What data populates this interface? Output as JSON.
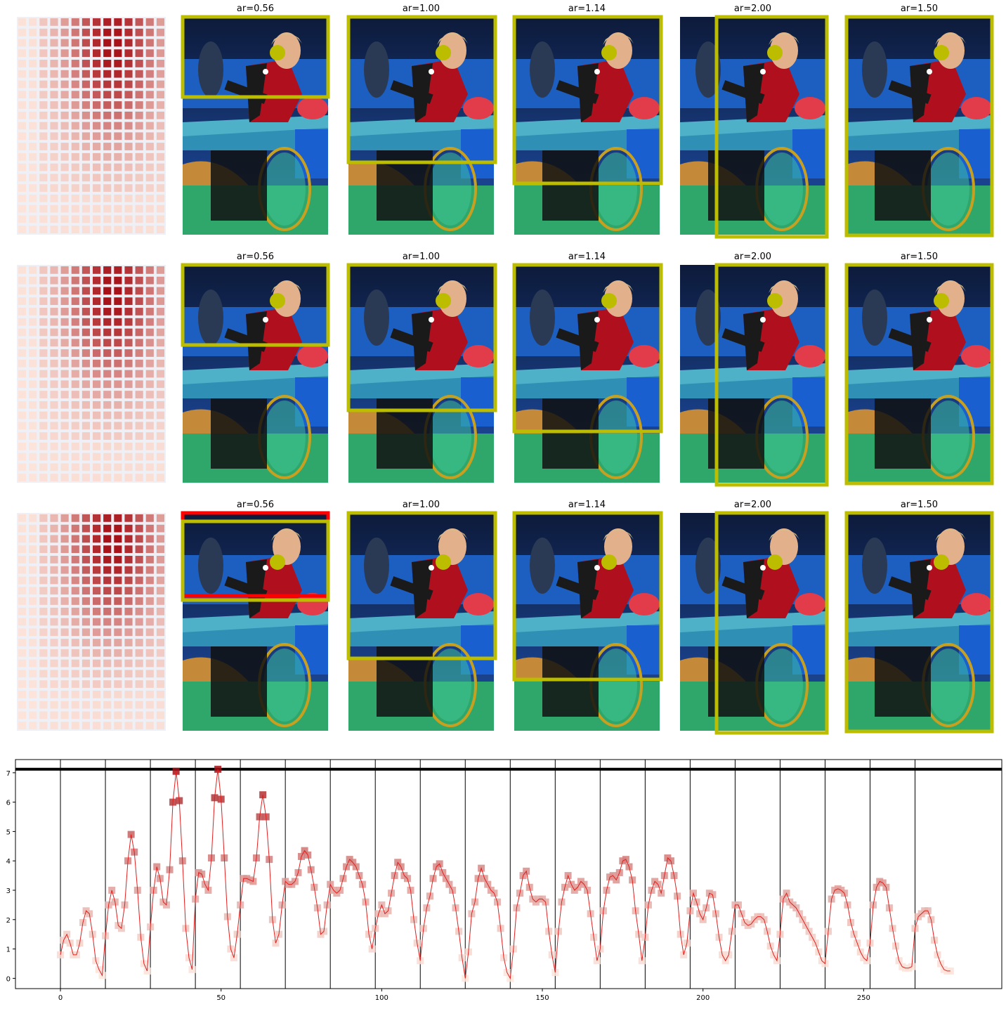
{
  "rows": [
    {
      "panels": [
        {
          "title": "ar=0.56",
          "box": "top",
          "dot": "upper"
        },
        {
          "title": "ar=1.00",
          "box": "tall",
          "dot": "upper"
        },
        {
          "title": "ar=1.14",
          "box": "taller",
          "dot": "upper"
        },
        {
          "title": "ar=2.00",
          "box": "narrow",
          "dot": "upper"
        },
        {
          "title": "ar=1.50",
          "box": "full",
          "dot": "upper"
        }
      ]
    },
    {
      "panels": [
        {
          "title": "ar=0.56",
          "box": "top",
          "dot": "upper"
        },
        {
          "title": "ar=1.00",
          "box": "tall",
          "dot": "upper"
        },
        {
          "title": "ar=1.14",
          "box": "taller",
          "dot": "upper"
        },
        {
          "title": "ar=2.00",
          "box": "narrow",
          "dot": "upper"
        },
        {
          "title": "ar=1.50",
          "box": "full",
          "dot": "upper"
        }
      ]
    },
    {
      "panels": [
        {
          "title": "ar=0.56",
          "box": "top",
          "dot": "lower",
          "red_box": true
        },
        {
          "title": "ar=1.00",
          "box": "tall",
          "dot": "lower"
        },
        {
          "title": "ar=1.14",
          "box": "taller",
          "dot": "lower"
        },
        {
          "title": "ar=2.00",
          "box": "narrow",
          "dot": "lower"
        },
        {
          "title": "ar=1.50",
          "box": "full",
          "dot": "lower"
        }
      ]
    }
  ],
  "colors": {
    "box": "#bdbd00",
    "red_box": "#ff0000",
    "line": "#e0201f",
    "threshold": "#000000",
    "heat_low": "#fde6dc",
    "heat_high": "#a50f15"
  },
  "chart_data": {
    "type": "line",
    "title": "",
    "xlabel": "",
    "ylabel": "",
    "xlim": [
      -14,
      293
    ],
    "ylim": [
      -0.35,
      7.45
    ],
    "xticks": [
      0,
      50,
      100,
      150,
      200,
      250
    ],
    "yticks": [
      0,
      1,
      2,
      3,
      4,
      5,
      6,
      7
    ],
    "threshold": 7.12,
    "segment_boundaries": [
      0,
      14,
      28,
      42,
      56,
      70,
      84,
      98,
      112,
      126,
      140,
      154,
      168,
      182,
      196,
      210,
      224,
      238,
      252,
      266
    ],
    "series": [
      {
        "values": [
          0.8,
          1.3,
          1.5,
          1.2,
          0.8,
          0.8,
          1.2,
          1.9,
          2.3,
          2.2,
          1.5,
          0.6,
          0.3,
          0.1,
          1.45,
          2.5,
          3.0,
          2.6,
          1.8,
          1.7,
          2.5,
          4.0,
          4.9,
          4.3,
          3.0,
          1.4,
          0.5,
          0.25,
          1.75,
          3.0,
          3.8,
          3.4,
          2.6,
          2.5,
          3.7,
          6.0,
          7.05,
          6.05,
          4.0,
          1.7,
          0.7,
          0.3,
          2.7,
          3.6,
          3.55,
          3.2,
          3.0,
          4.1,
          6.15,
          7.12,
          6.1,
          4.1,
          2.1,
          1.0,
          0.7,
          1.5,
          2.5,
          3.4,
          3.4,
          3.35,
          3.3,
          4.1,
          5.5,
          6.25,
          5.5,
          4.05,
          2.0,
          1.2,
          1.5,
          2.5,
          3.3,
          3.2,
          3.2,
          3.3,
          3.6,
          4.15,
          4.35,
          4.2,
          3.7,
          3.1,
          2.4,
          1.5,
          1.6,
          2.5,
          3.2,
          3.0,
          2.9,
          3.0,
          3.4,
          3.8,
          4.05,
          3.95,
          3.8,
          3.5,
          3.2,
          2.6,
          1.5,
          1.0,
          1.7,
          2.2,
          2.5,
          2.2,
          2.3,
          2.9,
          3.5,
          3.95,
          3.8,
          3.5,
          3.4,
          3.0,
          2.0,
          1.2,
          0.6,
          1.7,
          2.4,
          2.8,
          3.4,
          3.8,
          3.9,
          3.6,
          3.4,
          3.2,
          3.0,
          2.4,
          1.6,
          0.7,
          0.0,
          0.9,
          2.2,
          2.6,
          3.4,
          3.75,
          3.4,
          3.2,
          3.0,
          2.9,
          2.6,
          1.7,
          0.7,
          0.2,
          0.0,
          1.0,
          2.4,
          2.9,
          3.5,
          3.65,
          3.1,
          2.7,
          2.6,
          2.7,
          2.7,
          2.6,
          1.6,
          0.8,
          0.2,
          1.6,
          2.6,
          3.1,
          3.5,
          3.2,
          3.0,
          3.1,
          3.3,
          3.2,
          3.0,
          2.2,
          1.4,
          0.6,
          1.0,
          2.3,
          3.0,
          3.45,
          3.5,
          3.35,
          3.6,
          4.0,
          4.05,
          3.8,
          3.35,
          2.3,
          1.5,
          0.6,
          1.4,
          2.5,
          3.0,
          3.3,
          3.2,
          2.9,
          3.5,
          4.1,
          4.0,
          3.5,
          2.8,
          1.5,
          0.8,
          1.2,
          2.3,
          2.9,
          2.6,
          2.2,
          2.0,
          2.4,
          2.9,
          2.85,
          2.2,
          1.4,
          0.8,
          0.6,
          0.8,
          1.6,
          2.5,
          2.5,
          2.2,
          1.9,
          1.8,
          1.85,
          2.0,
          2.1,
          2.1,
          2.0,
          1.6,
          1.1,
          0.8,
          0.6,
          1.5,
          2.7,
          2.9,
          2.6,
          2.5,
          2.4,
          2.2,
          2.0,
          1.8,
          1.6,
          1.4,
          1.2,
          0.9,
          0.6,
          0.5,
          1.6,
          2.7,
          3.0,
          3.05,
          3.0,
          2.9,
          2.5,
          1.9,
          1.5,
          1.2,
          0.9,
          0.7,
          0.6,
          1.2,
          2.5,
          3.1,
          3.3,
          3.25,
          3.1,
          2.4,
          1.7,
          1.1,
          0.6,
          0.4,
          0.35,
          0.35,
          0.4,
          1.7,
          2.1,
          2.2,
          2.3,
          2.3,
          2.0,
          1.3,
          0.8,
          0.5,
          0.3,
          0.25,
          0.25
        ]
      }
    ]
  }
}
